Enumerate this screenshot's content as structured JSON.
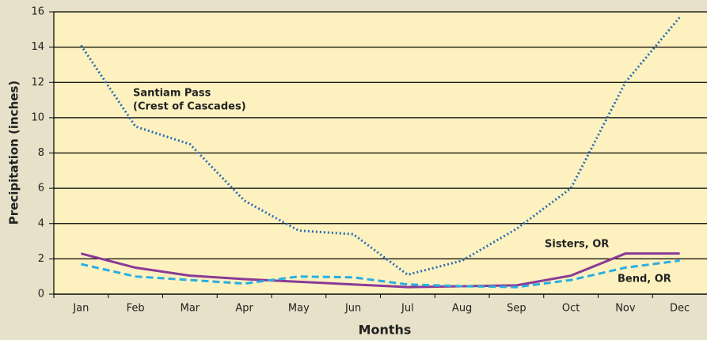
{
  "chart_data": {
    "type": "line",
    "x_label": "Months",
    "y_label": "Precipitation (inches)",
    "categories": [
      "Jan",
      "Feb",
      "Mar",
      "Apr",
      "May",
      "Jun",
      "Jul",
      "Aug",
      "Sep",
      "Oct",
      "Nov",
      "Dec"
    ],
    "series": [
      {
        "name": "Santiam Pass",
        "note": "(Crest of Cascades)",
        "color": "#2a6db5",
        "style": "dotted",
        "values": [
          14.1,
          9.5,
          8.5,
          5.3,
          3.6,
          3.4,
          1.1,
          1.9,
          3.7,
          6.0,
          12.0,
          15.7
        ]
      },
      {
        "name": "Sisters, OR",
        "color": "#8b3a96",
        "style": "solid",
        "values": [
          2.3,
          1.5,
          1.05,
          0.85,
          0.7,
          0.55,
          0.4,
          0.45,
          0.5,
          1.05,
          2.3,
          2.3
        ]
      },
      {
        "name": "Bend, OR",
        "color": "#29aee3",
        "style": "dashed",
        "values": [
          1.7,
          1.0,
          0.8,
          0.6,
          1.0,
          0.95,
          0.55,
          0.45,
          0.4,
          0.8,
          1.5,
          1.9
        ]
      }
    ],
    "ylim": [
      0,
      16
    ],
    "yticks": [
      0,
      2,
      4,
      6,
      8,
      10,
      12,
      14,
      16
    ],
    "grid": true
  }
}
